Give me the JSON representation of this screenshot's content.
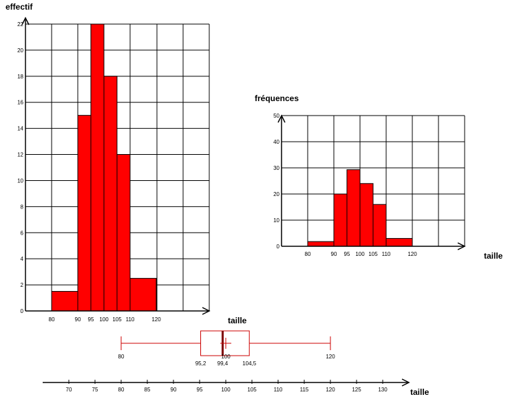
{
  "colors": {
    "bar": "#ff0000",
    "box": "#cc0000",
    "grid": "#000000"
  },
  "chart_data": [
    {
      "type": "bar",
      "ylabel": "effectif",
      "xlabel": "taille",
      "ylim": [
        0,
        22
      ],
      "y_ticks": [
        "0",
        "2",
        "4",
        "6",
        "8",
        "10",
        "12",
        "14",
        "16",
        "18",
        "20",
        "22"
      ],
      "x_tick_labels": [
        "80",
        "90",
        "95",
        "100",
        "105",
        "110",
        "120"
      ],
      "grid": true,
      "bins": [
        {
          "from": 80,
          "to": 90,
          "value": 1.5
        },
        {
          "from": 90,
          "to": 95,
          "value": 15
        },
        {
          "from": 95,
          "to": 100,
          "value": 22
        },
        {
          "from": 100,
          "to": 105,
          "value": 18
        },
        {
          "from": 105,
          "to": 110,
          "value": 12
        },
        {
          "from": 110,
          "to": 120,
          "value": 2.5
        }
      ]
    },
    {
      "type": "bar",
      "ylabel": "fréquences",
      "xlabel": "taille",
      "ylim": [
        0,
        50
      ],
      "y_ticks": [
        "0",
        "10",
        "20",
        "30",
        "40",
        "50"
      ],
      "x_tick_labels": [
        "80",
        "90",
        "95",
        "100",
        "105",
        "110",
        "120"
      ],
      "grid": true,
      "bins": [
        {
          "from": 80,
          "to": 90,
          "value": 1.8
        },
        {
          "from": 90,
          "to": 95,
          "value": 20
        },
        {
          "from": 95,
          "to": 100,
          "value": 29.3
        },
        {
          "from": 100,
          "to": 105,
          "value": 24
        },
        {
          "from": 105,
          "to": 110,
          "value": 16
        },
        {
          "from": 110,
          "to": 120,
          "value": 3
        }
      ]
    },
    {
      "type": "boxplot",
      "xlabel": "taille",
      "min": 80,
      "q1": 95.2,
      "median": 99.4,
      "mean": 100,
      "q3": 104.5,
      "max": 120,
      "value_labels": [
        "80",
        "95,2",
        "99,4",
        "100",
        "104,5",
        "120"
      ],
      "axis_ticks": [
        "70",
        "75",
        "80",
        "85",
        "90",
        "95",
        "100",
        "105",
        "110",
        "115",
        "120",
        "125",
        "130"
      ]
    }
  ]
}
